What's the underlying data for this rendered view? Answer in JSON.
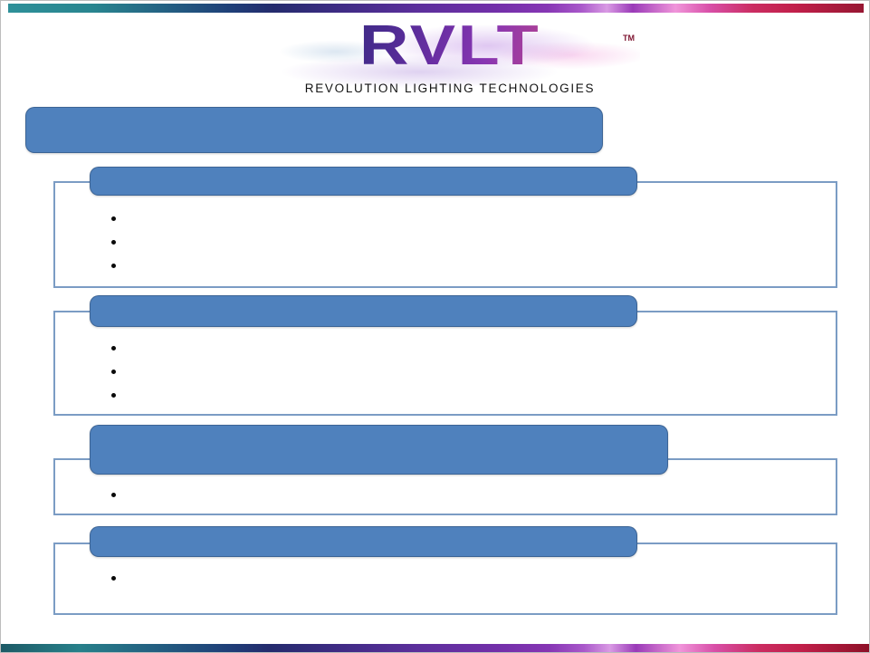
{
  "logo": {
    "brand": "RVLT",
    "trademark": "TM",
    "tagline": "REVOLUTION LIGHTING TECHNOLOGIES"
  },
  "title_bar": {
    "label": ""
  },
  "sections": [
    {
      "header": "",
      "bullets": [
        "",
        "",
        ""
      ]
    },
    {
      "header": "",
      "bullets": [
        "",
        "",
        ""
      ]
    },
    {
      "header": "",
      "bullets": [
        ""
      ]
    },
    {
      "header": "",
      "bullets": [
        ""
      ]
    }
  ],
  "colors": {
    "accent_blue": "#4f81bd",
    "box_border": "#7b9cc4",
    "strip_teal": "#2e9099",
    "strip_navy": "#242b6d",
    "strip_purple": "#722fa9",
    "strip_magenta": "#d84fa8",
    "strip_crimson": "#c11f4a"
  }
}
